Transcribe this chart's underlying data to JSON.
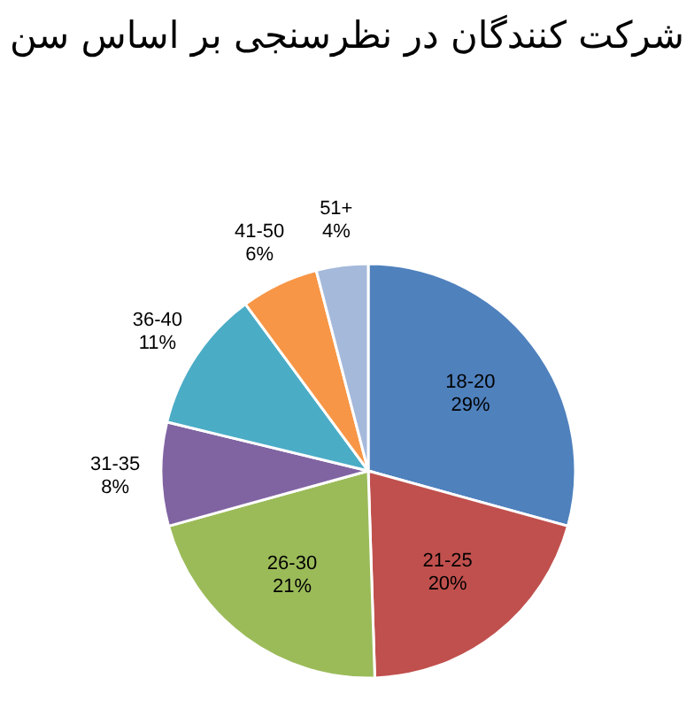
{
  "chart_data": {
    "type": "pie",
    "title": "شرکت کنندگان در نظرسنجی بر اساس سن",
    "categories": [
      "18-20",
      "21-25",
      "26-30",
      "31-35",
      "36-40",
      "41-50",
      "51+"
    ],
    "values": [
      29,
      20,
      21,
      8,
      11,
      6,
      4
    ],
    "value_labels": [
      "29%",
      "20%",
      "21%",
      "8%",
      "11%",
      "6%",
      "4%"
    ],
    "colors": [
      "#4f81bd",
      "#c0504d",
      "#9bbb59",
      "#8064a2",
      "#4bacc6",
      "#f79646",
      "#a5b9db"
    ]
  }
}
